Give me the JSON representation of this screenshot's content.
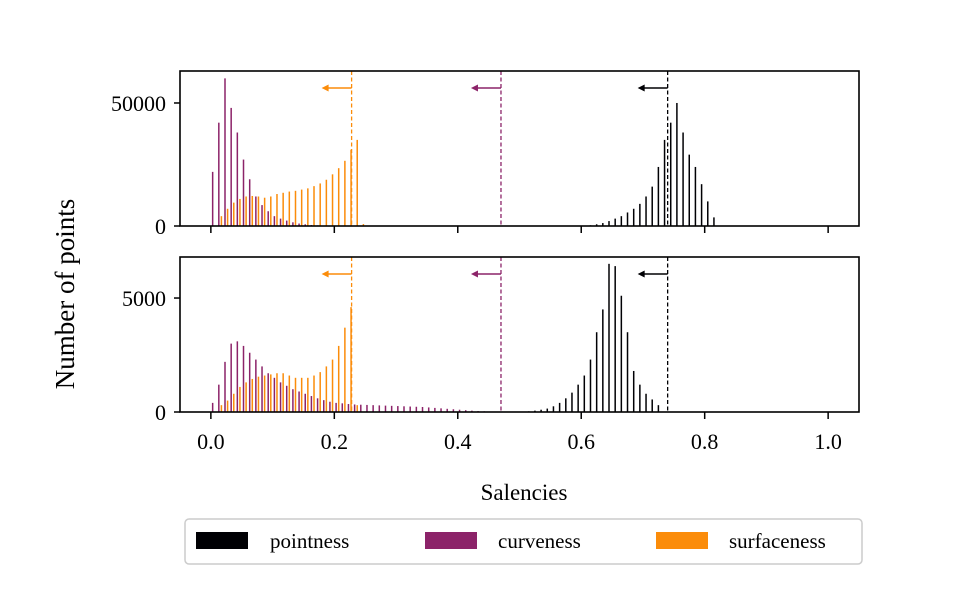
{
  "chart_data": {
    "type": "bar",
    "xlabel": "Salencies",
    "ylabel": "Number of points",
    "xlim": [
      -0.05,
      1.05
    ],
    "xticks": [
      0.0,
      0.2,
      0.4,
      0.6,
      0.8,
      1.0
    ],
    "xtick_labels": [
      "0.0",
      "0.2",
      "0.4",
      "0.6",
      "0.8",
      "1.0"
    ],
    "colors": {
      "pointness": "#000004",
      "curveness": "#8c2369",
      "surfaceness": "#fb8c0a"
    },
    "legend": {
      "position": "bottom",
      "entries": [
        "pointness",
        "curveness",
        "surfaceness"
      ]
    },
    "panels": [
      {
        "name": "top",
        "ylim": [
          0,
          63000
        ],
        "yticks": [
          0,
          50000
        ],
        "ytick_labels": [
          "0",
          "50000"
        ],
        "thresholds": [
          {
            "series": "surfaceness",
            "x": 0.228
          },
          {
            "series": "curveness",
            "x": 0.47
          },
          {
            "series": "pointness",
            "x": 0.74
          }
        ],
        "series": [
          {
            "name": "curveness",
            "x": [
              0.005,
              0.015,
              0.025,
              0.035,
              0.045,
              0.055,
              0.065,
              0.075,
              0.085,
              0.095,
              0.105,
              0.115,
              0.125,
              0.135,
              0.145,
              0.155,
              0.165,
              0.175,
              0.185
            ],
            "values": [
              22000,
              42000,
              60000,
              48000,
              38000,
              27000,
              19000,
              12000,
              8500,
              6000,
              4000,
              3000,
              2200,
              1500,
              1000,
              700,
              400,
              250,
              100
            ]
          },
          {
            "name": "surfaceness",
            "x": [
              0.015,
              0.025,
              0.035,
              0.045,
              0.055,
              0.065,
              0.075,
              0.085,
              0.095,
              0.105,
              0.115,
              0.125,
              0.135,
              0.145,
              0.155,
              0.165,
              0.175,
              0.185,
              0.195,
              0.205,
              0.215,
              0.225,
              0.235,
              0.245
            ],
            "values": [
              4000,
              7000,
              9500,
              11000,
              12000,
              12200,
              12000,
              11500,
              12000,
              13000,
              13500,
              14000,
              14300,
              14800,
              15300,
              16200,
              17300,
              18800,
              21000,
              23500,
              26500,
              31000,
              35000,
              800
            ]
          },
          {
            "name": "pointness",
            "x": [
              0.615,
              0.625,
              0.635,
              0.645,
              0.655,
              0.665,
              0.675,
              0.685,
              0.695,
              0.705,
              0.715,
              0.725,
              0.735,
              0.745,
              0.755,
              0.765,
              0.775,
              0.785,
              0.795,
              0.805,
              0.815
            ],
            "values": [
              300,
              700,
              1200,
              2000,
              3000,
              4000,
              5500,
              7000,
              9000,
              12000,
              16000,
              24000,
              35000,
              42000,
              50000,
              38000,
              29000,
              24000,
              17000,
              10000,
              3500
            ]
          }
        ]
      },
      {
        "name": "bottom",
        "ylim": [
          0,
          6800
        ],
        "yticks": [
          0,
          5000
        ],
        "ytick_labels": [
          "0",
          "5000"
        ],
        "thresholds": [
          {
            "series": "surfaceness",
            "x": 0.228
          },
          {
            "series": "curveness",
            "x": 0.47
          },
          {
            "series": "pointness",
            "x": 0.74
          }
        ],
        "series": [
          {
            "name": "curveness",
            "x": [
              0.005,
              0.015,
              0.025,
              0.035,
              0.045,
              0.055,
              0.065,
              0.075,
              0.085,
              0.095,
              0.105,
              0.115,
              0.125,
              0.135,
              0.145,
              0.155,
              0.165,
              0.175,
              0.185,
              0.195,
              0.205,
              0.215,
              0.225,
              0.235,
              0.245,
              0.255,
              0.265,
              0.275,
              0.285,
              0.295,
              0.305,
              0.315,
              0.325,
              0.335,
              0.345,
              0.355,
              0.365,
              0.375,
              0.385,
              0.395,
              0.405,
              0.415,
              0.425,
              0.435,
              0.445,
              0.455,
              0.465
            ],
            "values": [
              400,
              1200,
              2200,
              3000,
              3100,
              2900,
              2600,
              2300,
              2000,
              1700,
              1500,
              1300,
              1150,
              1000,
              900,
              800,
              700,
              600,
              520,
              450,
              400,
              380,
              350,
              330,
              320,
              310,
              300,
              290,
              280,
              270,
              260,
              250,
              240,
              230,
              220,
              200,
              180,
              160,
              140,
              120,
              100,
              80,
              60,
              40,
              30,
              20,
              10
            ]
          },
          {
            "name": "surfaceness",
            "x": [
              0.015,
              0.025,
              0.035,
              0.045,
              0.055,
              0.065,
              0.075,
              0.085,
              0.095,
              0.105,
              0.115,
              0.125,
              0.135,
              0.145,
              0.155,
              0.165,
              0.175,
              0.185,
              0.195,
              0.205,
              0.215,
              0.225,
              0.235
            ],
            "values": [
              300,
              500,
              800,
              1100,
              1300,
              1450,
              1550,
              1600,
              1650,
              1700,
              1700,
              1600,
              1500,
              1500,
              1500,
              1600,
              1750,
              2000,
              2300,
              2900,
              3700,
              4600,
              300
            ]
          },
          {
            "name": "pointness",
            "x": [
              0.515,
              0.525,
              0.535,
              0.545,
              0.555,
              0.565,
              0.575,
              0.585,
              0.595,
              0.605,
              0.615,
              0.625,
              0.635,
              0.645,
              0.655,
              0.665,
              0.675,
              0.685,
              0.695,
              0.705,
              0.715,
              0.725
            ],
            "values": [
              30,
              60,
              100,
              150,
              250,
              400,
              600,
              850,
              1200,
              1600,
              2300,
              3500,
              4500,
              6500,
              6400,
              5100,
              3500,
              1800,
              1200,
              800,
              550,
              300
            ]
          }
        ]
      }
    ]
  }
}
